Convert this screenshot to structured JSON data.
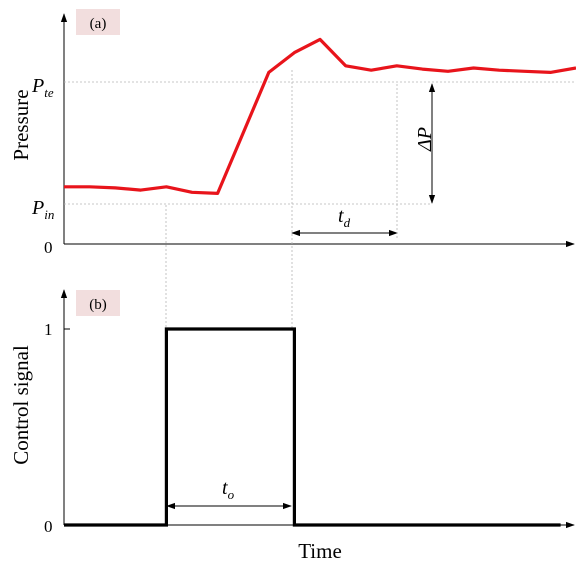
{
  "chart_data": [
    {
      "type": "line",
      "panel_label": "(a)",
      "xlabel": "",
      "ylabel": "Pressure",
      "y_tick_labels": [
        {
          "base": "P",
          "sub": "te"
        },
        {
          "base": "P",
          "sub": "in"
        },
        {
          "text": "0"
        }
      ],
      "series": [
        {
          "color": "#e8141b",
          "x": [
            0.0,
            0.05,
            0.1,
            0.15,
            0.2,
            0.25,
            0.3,
            0.4,
            0.45,
            0.5,
            0.55,
            0.6,
            0.65,
            0.7,
            0.75,
            0.8,
            0.85,
            0.9,
            0.95,
            1.0
          ],
          "y": [
            0.26,
            0.26,
            0.255,
            0.245,
            0.26,
            0.235,
            0.23,
            0.78,
            0.87,
            0.93,
            0.81,
            0.79,
            0.81,
            0.795,
            0.785,
            0.8,
            0.79,
            0.785,
            0.78,
            0.8
          ]
        }
      ],
      "annotations": {
        "delta_label": {
          "base": "ΔP"
        },
        "delay_label": {
          "base": "t",
          "sub": "d"
        }
      }
    },
    {
      "type": "line",
      "panel_label": "(b)",
      "xlabel": "Time",
      "ylabel": "Control signal",
      "y_ticks": [
        "1",
        "0"
      ],
      "series": [
        {
          "color": "#000000",
          "x": [
            0.0,
            0.2,
            0.2,
            0.45,
            0.45,
            0.97
          ],
          "y": [
            0,
            0,
            1,
            1,
            0,
            0
          ]
        }
      ],
      "annotations": {
        "duration_label": {
          "base": "t",
          "sub": "o"
        }
      }
    }
  ]
}
